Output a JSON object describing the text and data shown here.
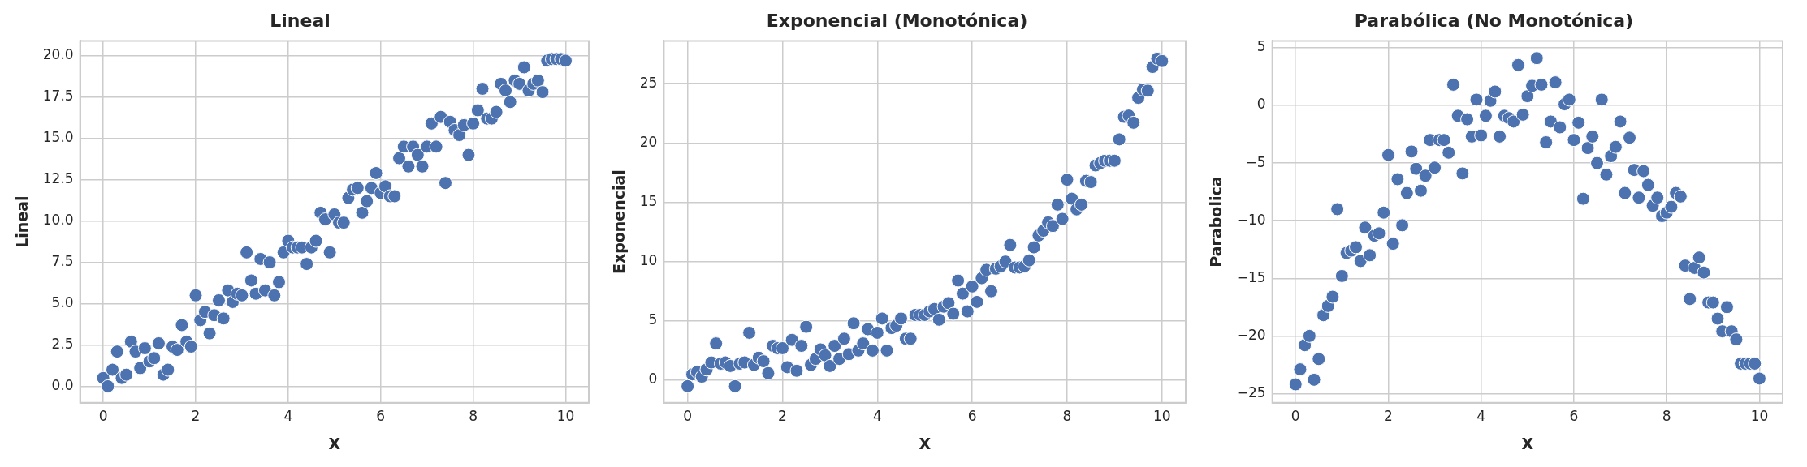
{
  "chart_data": [
    {
      "type": "scatter",
      "title": "Lineal",
      "xlabel": "X",
      "ylabel": "Lineal",
      "color": "#4c72b0",
      "marker": "circle",
      "grid": true,
      "x": [
        0,
        0.1,
        0.2,
        0.3,
        0.4,
        0.5,
        0.6,
        0.7,
        0.8,
        0.9,
        1,
        1.1,
        1.2,
        1.3,
        1.4,
        1.5,
        1.6,
        1.7,
        1.8,
        1.9,
        2,
        2.1,
        2.2,
        2.3,
        2.4,
        2.5,
        2.6,
        2.7,
        2.8,
        2.9,
        3,
        3.1,
        3.2,
        3.3,
        3.4,
        3.5,
        3.6,
        3.7,
        3.8,
        3.9,
        4,
        4.1,
        4.2,
        4.3,
        4.4,
        4.5,
        4.6,
        4.7,
        4.8,
        4.9,
        5,
        5.1,
        5.2,
        5.3,
        5.4,
        5.5,
        5.6,
        5.7,
        5.8,
        5.9,
        6,
        6.1,
        6.2,
        6.3,
        6.4,
        6.5,
        6.6,
        6.7,
        6.8,
        6.9,
        7,
        7.1,
        7.2,
        7.3,
        7.4,
        7.5,
        7.6,
        7.7,
        7.8,
        7.9,
        8,
        8.1,
        8.2,
        8.3,
        8.4,
        8.5,
        8.6,
        8.7,
        8.8,
        8.9,
        9,
        9.1,
        9.2,
        9.3,
        9.4,
        9.5,
        9.6,
        9.7,
        9.8,
        9.9,
        10
      ],
      "values": [
        0.5,
        0.0,
        1.0,
        2.1,
        0.5,
        0.7,
        2.7,
        2.1,
        1.1,
        2.3,
        1.5,
        1.7,
        2.6,
        0.7,
        1.0,
        2.4,
        2.2,
        3.7,
        2.7,
        2.4,
        5.5,
        4.0,
        4.5,
        3.2,
        4.3,
        5.2,
        4.1,
        5.8,
        5.1,
        5.6,
        5.5,
        8.1,
        6.4,
        5.6,
        7.7,
        5.8,
        7.5,
        5.5,
        6.3,
        8.1,
        8.8,
        8.4,
        8.4,
        8.4,
        7.4,
        8.4,
        8.8,
        10.5,
        10.1,
        8.1,
        10.4,
        9.9,
        9.9,
        11.4,
        11.9,
        12.0,
        10.5,
        11.2,
        12.0,
        12.9,
        11.7,
        12.1,
        11.5,
        11.5,
        13.8,
        14.5,
        13.3,
        14.5,
        14.0,
        13.3,
        14.5,
        15.9,
        14.5,
        16.3,
        12.3,
        16.0,
        15.5,
        15.2,
        15.8,
        14.0,
        15.9,
        16.7,
        18.0,
        16.2,
        16.2,
        16.6,
        18.3,
        17.9,
        17.2,
        18.5,
        18.3,
        19.3,
        17.9,
        18.3,
        18.5,
        17.8,
        19.7,
        19.8,
        19.8,
        19.8,
        19.7
      ],
      "xlim": [
        -0.5,
        10.5
      ],
      "xticks": [
        0,
        2,
        4,
        6,
        8,
        10
      ],
      "ylim": [
        -1.0,
        20.9
      ],
      "yticks": [
        {
          "value": 0,
          "label": "0.0"
        },
        {
          "value": 2.5,
          "label": "2.5"
        },
        {
          "value": 5,
          "label": "5.0"
        },
        {
          "value": 7.5,
          "label": "7.5"
        },
        {
          "value": 10,
          "label": "10.0"
        },
        {
          "value": 12.5,
          "label": "12.5"
        },
        {
          "value": 15,
          "label": "15.0"
        },
        {
          "value": 17.5,
          "label": "17.5"
        },
        {
          "value": 20,
          "label": "20.0"
        }
      ]
    },
    {
      "type": "scatter",
      "title": "Exponencial (Monotónica)",
      "xlabel": "X",
      "ylabel": "Exponencial",
      "color": "#4c72b0",
      "marker": "circle",
      "grid": true,
      "x": [
        0,
        0.1,
        0.2,
        0.3,
        0.4,
        0.5,
        0.6,
        0.7,
        0.8,
        0.9,
        1,
        1.1,
        1.2,
        1.3,
        1.4,
        1.5,
        1.6,
        1.7,
        1.8,
        1.9,
        2,
        2.1,
        2.2,
        2.3,
        2.4,
        2.5,
        2.6,
        2.7,
        2.8,
        2.9,
        3,
        3.1,
        3.2,
        3.3,
        3.4,
        3.5,
        3.6,
        3.7,
        3.8,
        3.9,
        4,
        4.1,
        4.2,
        4.3,
        4.4,
        4.5,
        4.6,
        4.7,
        4.8,
        4.9,
        5,
        5.1,
        5.2,
        5.3,
        5.4,
        5.5,
        5.6,
        5.7,
        5.8,
        5.9,
        6,
        6.1,
        6.2,
        6.3,
        6.4,
        6.5,
        6.6,
        6.7,
        6.8,
        6.9,
        7,
        7.1,
        7.2,
        7.3,
        7.4,
        7.5,
        7.6,
        7.7,
        7.8,
        7.9,
        8,
        8.1,
        8.2,
        8.3,
        8.4,
        8.5,
        8.6,
        8.7,
        8.8,
        8.9,
        9,
        9.1,
        9.2,
        9.3,
        9.4,
        9.5,
        9.6,
        9.7,
        9.8,
        9.9,
        10
      ],
      "values": [
        -0.5,
        0.5,
        0.7,
        0.3,
        0.9,
        1.5,
        3.1,
        1.4,
        1.5,
        1.2,
        -0.5,
        1.4,
        1.5,
        4.0,
        1.3,
        1.9,
        1.6,
        0.6,
        2.9,
        2.7,
        2.7,
        1.1,
        3.4,
        0.8,
        2.9,
        4.5,
        1.3,
        1.8,
        2.6,
        2.1,
        1.2,
        2.9,
        1.8,
        3.5,
        2.2,
        4.8,
        2.5,
        3.1,
        4.3,
        2.5,
        4.0,
        5.2,
        2.5,
        4.4,
        4.6,
        5.2,
        3.5,
        3.5,
        5.5,
        5.5,
        5.5,
        5.8,
        6.0,
        5.1,
        6.2,
        6.5,
        5.6,
        8.4,
        7.3,
        5.8,
        7.9,
        6.6,
        8.6,
        9.3,
        7.5,
        9.4,
        9.6,
        10.0,
        11.4,
        9.5,
        9.5,
        9.6,
        10.1,
        11.2,
        12.2,
        12.6,
        13.3,
        13.0,
        14.8,
        13.6,
        16.9,
        15.3,
        14.4,
        14.8,
        16.8,
        16.7,
        18.1,
        18.3,
        18.5,
        18.5,
        18.5,
        20.3,
        22.2,
        22.3,
        21.7,
        23.8,
        24.5,
        24.4,
        26.4,
        27.1,
        26.9
      ],
      "xlim": [
        -0.5,
        10.5
      ],
      "xticks": [
        0,
        2,
        4,
        6,
        8,
        10
      ],
      "ylim": [
        -1.9,
        28.6
      ],
      "yticks": [
        0,
        5,
        10,
        15,
        20,
        25
      ]
    },
    {
      "type": "scatter",
      "title": "Parabólica (No Monotónica)",
      "xlabel": "X",
      "ylabel": "Parabolica",
      "color": "#4c72b0",
      "marker": "circle",
      "grid": true,
      "x": [
        0,
        0.1,
        0.2,
        0.3,
        0.4,
        0.5,
        0.6,
        0.7,
        0.8,
        0.9,
        1,
        1.1,
        1.2,
        1.3,
        1.4,
        1.5,
        1.6,
        1.7,
        1.8,
        1.9,
        2,
        2.1,
        2.2,
        2.3,
        2.4,
        2.5,
        2.6,
        2.7,
        2.8,
        2.9,
        3,
        3.1,
        3.2,
        3.3,
        3.4,
        3.5,
        3.6,
        3.7,
        3.8,
        3.9,
        4,
        4.1,
        4.2,
        4.3,
        4.4,
        4.5,
        4.6,
        4.7,
        4.8,
        4.9,
        5,
        5.1,
        5.2,
        5.3,
        5.4,
        5.5,
        5.6,
        5.7,
        5.8,
        5.9,
        6,
        6.1,
        6.2,
        6.3,
        6.4,
        6.5,
        6.6,
        6.7,
        6.8,
        6.9,
        7,
        7.1,
        7.2,
        7.3,
        7.4,
        7.5,
        7.6,
        7.7,
        7.8,
        7.9,
        8,
        8.1,
        8.2,
        8.3,
        8.4,
        8.5,
        8.6,
        8.7,
        8.8,
        8.9,
        9,
        9.1,
        9.2,
        9.3,
        9.4,
        9.5,
        9.6,
        9.7,
        9.8,
        9.9,
        10
      ],
      "values": [
        -24.2,
        -22.9,
        -20.8,
        -20.0,
        -23.8,
        -22.0,
        -18.2,
        -17.4,
        -16.6,
        -9.0,
        -14.8,
        -12.8,
        -12.6,
        -12.3,
        -13.5,
        -10.6,
        -13.0,
        -11.3,
        -11.1,
        -9.3,
        -4.3,
        -12.0,
        -6.4,
        -10.4,
        -7.6,
        -4.0,
        -5.5,
        -7.4,
        -6.1,
        -3.0,
        -5.4,
        -3.0,
        -3.0,
        -4.1,
        1.8,
        -0.9,
        -5.9,
        -1.2,
        -2.7,
        0.5,
        -2.6,
        -0.9,
        0.4,
        1.2,
        -2.7,
        -0.9,
        -1.1,
        -1.4,
        3.5,
        -0.8,
        0.8,
        1.7,
        4.1,
        1.8,
        -3.2,
        -1.4,
        2.0,
        -1.9,
        0.1,
        0.5,
        -3.0,
        -1.5,
        -8.1,
        -3.7,
        -2.7,
        -5.0,
        0.5,
        -6.0,
        -4.4,
        -3.6,
        -1.4,
        -7.6,
        -2.8,
        -5.6,
        -8.0,
        -5.7,
        -6.9,
        -8.7,
        -8.0,
        -9.6,
        -9.3,
        -8.8,
        -7.6,
        -7.9,
        -13.9,
        -16.8,
        -14.1,
        -13.2,
        -14.5,
        -17.1,
        -17.1,
        -18.5,
        -19.6,
        -17.5,
        -19.6,
        -20.3,
        -22.4,
        -22.4,
        -22.4,
        -22.4,
        -23.7
      ],
      "xlim": [
        -0.5,
        10.5
      ],
      "xticks": [
        0,
        2,
        4,
        6,
        8,
        10
      ],
      "ylim": [
        -25.8,
        5.6
      ],
      "yticks": [
        {
          "value": -25,
          "label": "−25"
        },
        {
          "value": -20,
          "label": "−20"
        },
        {
          "value": -15,
          "label": "−15"
        },
        {
          "value": -10,
          "label": "−10"
        },
        {
          "value": -5,
          "label": "−5"
        },
        0,
        5
      ]
    }
  ]
}
